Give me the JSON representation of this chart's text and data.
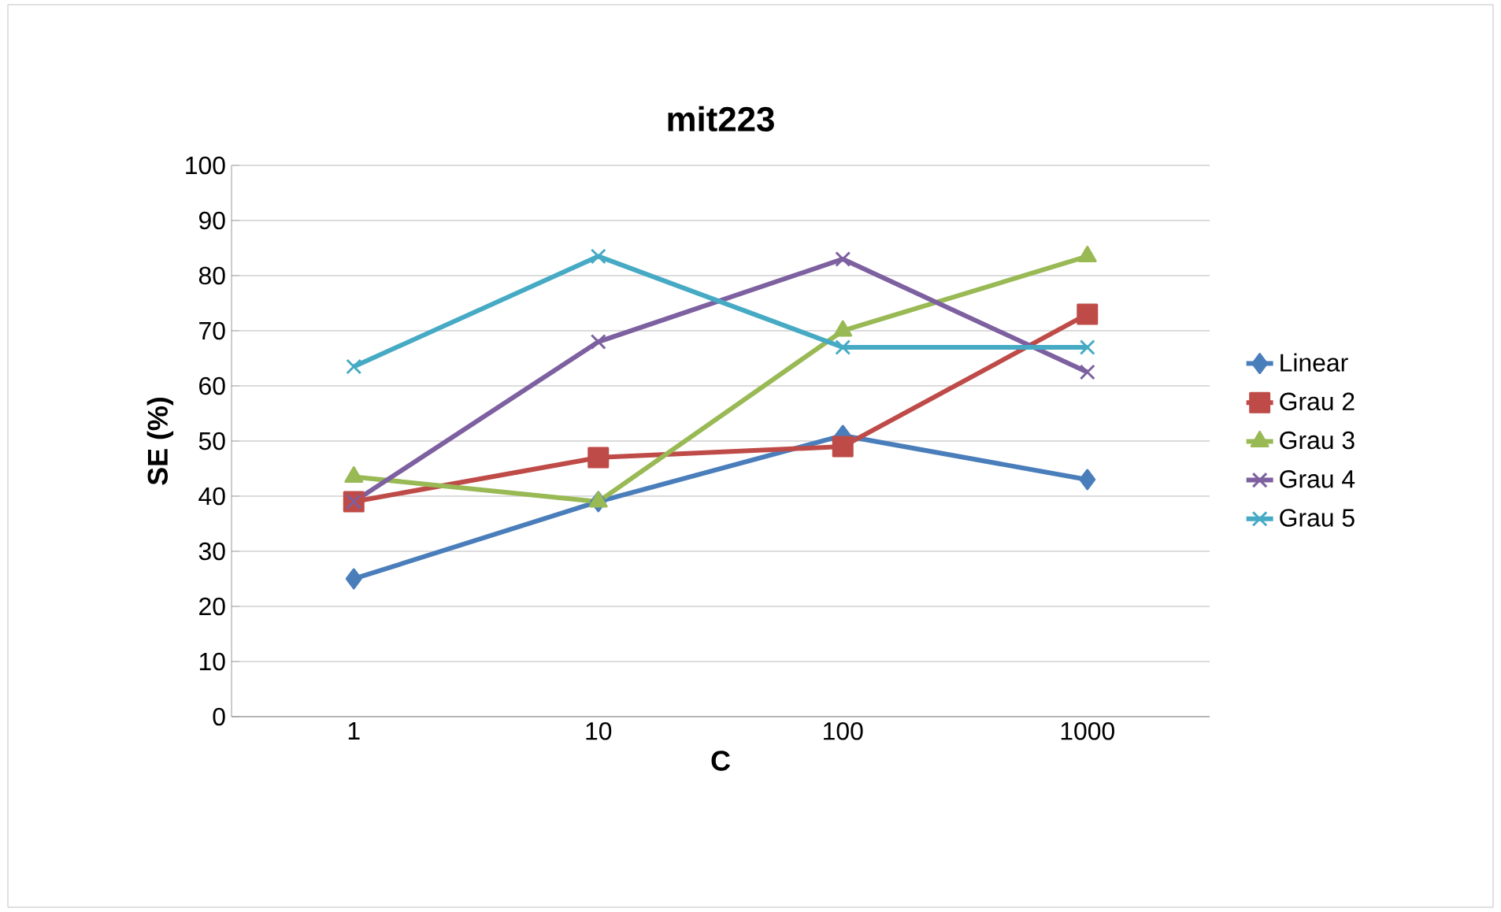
{
  "chart_data": {
    "type": "line",
    "title": "mit223",
    "xlabel": "C",
    "ylabel": "SE (%)",
    "categories": [
      "1",
      "10",
      "100",
      "1000"
    ],
    "ylim": [
      0,
      100
    ],
    "yticks": [
      0,
      10,
      20,
      30,
      40,
      50,
      60,
      70,
      80,
      90,
      100
    ],
    "grid": "y",
    "legend": "right",
    "series": [
      {
        "name": "Linear",
        "color": "#4a7ebb",
        "marker": "diamond",
        "values": [
          25,
          39,
          51,
          43
        ]
      },
      {
        "name": "Grau 2",
        "color": "#be4b48",
        "marker": "square",
        "values": [
          39,
          47,
          49,
          73
        ]
      },
      {
        "name": "Grau 3",
        "color": "#98b954",
        "marker": "triangle",
        "values": [
          43.5,
          39,
          70,
          83.5
        ]
      },
      {
        "name": "Grau 4",
        "color": "#7d60a0",
        "marker": "cross",
        "values": [
          39,
          68,
          83,
          62.5
        ]
      },
      {
        "name": "Grau 5",
        "color": "#46aac5",
        "marker": "cross",
        "values": [
          63.5,
          83.5,
          67,
          67
        ]
      }
    ]
  }
}
